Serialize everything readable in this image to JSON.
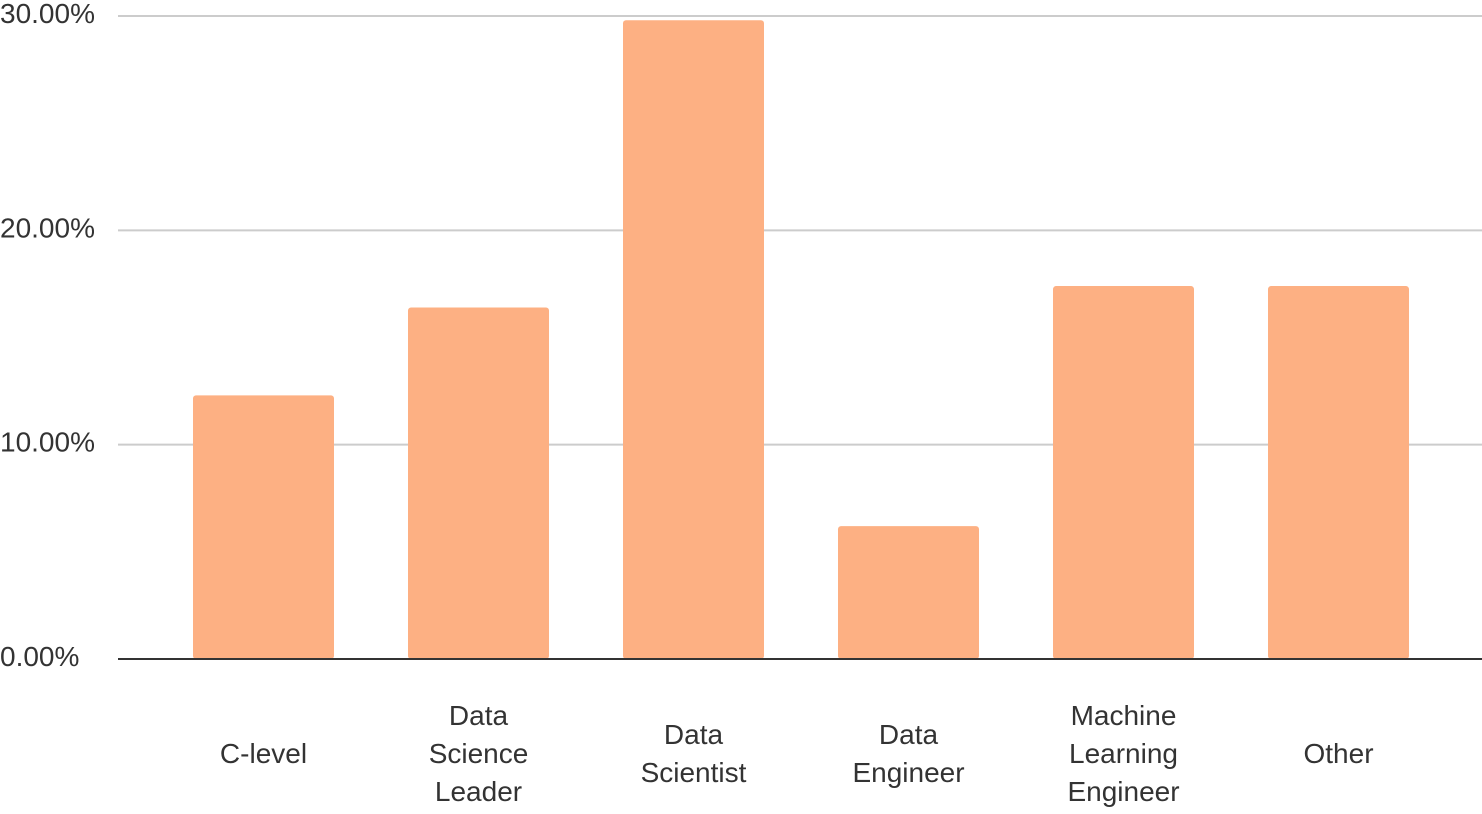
{
  "chart_data": {
    "type": "bar",
    "categories": [
      "C-level",
      "Data Science Leader",
      "Data Scientist",
      "Data Engineer",
      "Machine Learning Engineer",
      "Other"
    ],
    "values": [
      12.3,
      16.4,
      29.8,
      6.2,
      17.4,
      17.4
    ],
    "color": "#fdb083",
    "ylim": [
      0,
      30
    ],
    "yticks": [
      {
        "value": 0,
        "label": "0.00%"
      },
      {
        "value": 10,
        "label": "10.00%"
      },
      {
        "value": 20,
        "label": "20.00%"
      },
      {
        "value": 30,
        "label": "30.00%"
      }
    ],
    "grid": true
  }
}
